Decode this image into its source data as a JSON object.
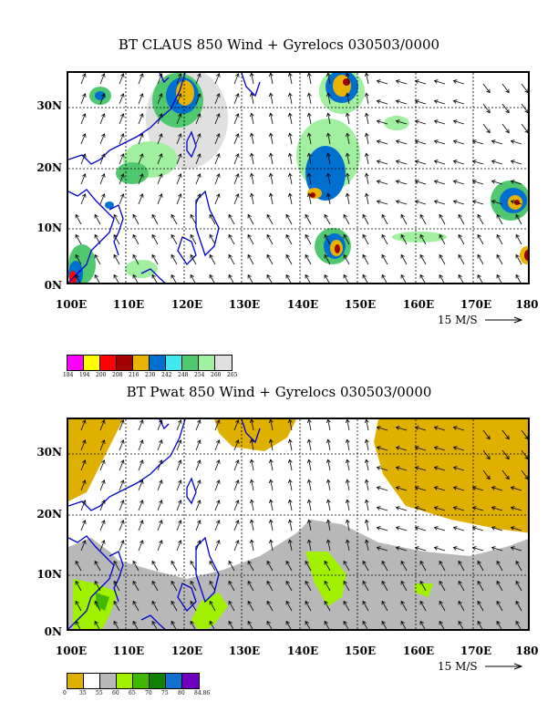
{
  "map1": {
    "title": "BT CLAUS 850 Wind + Gyrelocs 030503/0000",
    "lat_labels": [
      "30N",
      "20N",
      "10N",
      "0N"
    ],
    "lon_labels": [
      "100E",
      "110E",
      "120E",
      "130E",
      "140E",
      "150E",
      "160E",
      "170E",
      "180"
    ],
    "scale_label": "15 M/S",
    "legend": {
      "colors": [
        "#ff00ff",
        "#ffff00",
        "#ff0000",
        "#a00000",
        "#e8b400",
        "#0070d0",
        "#40e8f0",
        "#50c870",
        "#a0f0a0",
        "#e0e0e0"
      ],
      "labels": [
        "184",
        "194",
        "200",
        "208",
        "216",
        "230",
        "242",
        "248",
        "254",
        "260",
        "265"
      ]
    }
  },
  "map2": {
    "title": "BT Pwat 850 Wind + Gyrelocs 030503/0000",
    "lat_labels": [
      "30N",
      "20N",
      "10N",
      "0N"
    ],
    "lon_labels": [
      "100E",
      "110E",
      "120E",
      "130E",
      "140E",
      "150E",
      "160E",
      "170E",
      "180"
    ],
    "scale_label": "15 M/S",
    "legend": {
      "colors": [
        "#e0b000",
        "#ffffff",
        "#b8b8b8",
        "#a0f000",
        "#40b800",
        "#108000",
        "#1070d0",
        "#7000c0"
      ],
      "labels": [
        "0",
        "35",
        "55",
        "60",
        "65",
        "70",
        "75",
        "80",
        "84.86"
      ]
    }
  },
  "colors": {
    "coast": "#0000d0",
    "grid": "#000000"
  }
}
